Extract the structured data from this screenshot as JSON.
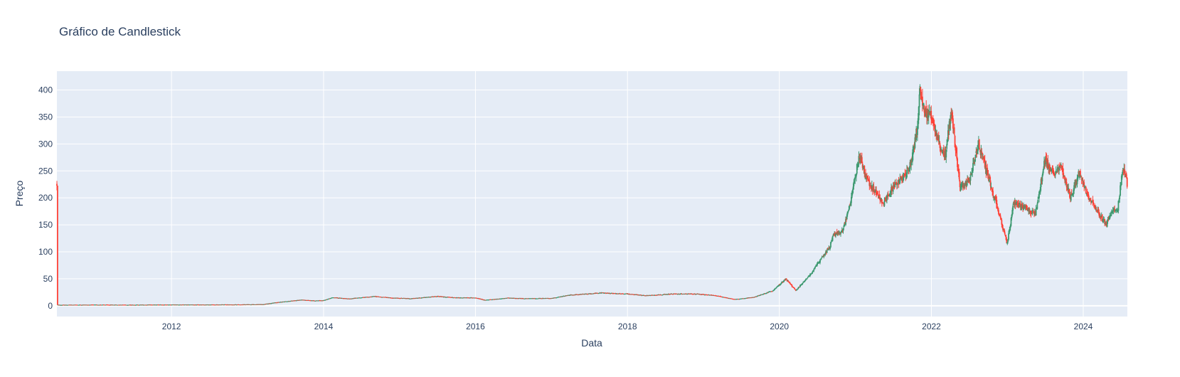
{
  "chart_data": {
    "type": "candlestick",
    "title": "Gráfico de Candlestick",
    "xlabel": "Data",
    "ylabel": "Preço",
    "x_range": [
      "2010-06-29",
      "2024-07-31"
    ],
    "ylim": [
      -20,
      435
    ],
    "x_ticks": [
      "2012",
      "2014",
      "2016",
      "2018",
      "2020",
      "2022",
      "2024"
    ],
    "y_ticks": [
      0,
      50,
      100,
      150,
      200,
      250,
      300,
      350,
      400
    ],
    "colors": {
      "increasing": "#3d9970",
      "decreasing": "#ff4136",
      "plot_background": "#e5ecf6",
      "grid": "#ffffff",
      "text": "#2a3f5f"
    },
    "grid": true,
    "price_path": [
      [
        "2010-07-01",
        1.5
      ],
      [
        "2011-01-01",
        1.8
      ],
      [
        "2011-07-01",
        1.7
      ],
      [
        "2012-01-01",
        2.0
      ],
      [
        "2012-07-01",
        2.0
      ],
      [
        "2013-01-01",
        2.3
      ],
      [
        "2013-03-15",
        2.6
      ],
      [
        "2013-05-15",
        6.0
      ],
      [
        "2013-07-01",
        8.0
      ],
      [
        "2013-09-15",
        11.0
      ],
      [
        "2013-11-15",
        9.5
      ],
      [
        "2014-01-01",
        10.0
      ],
      [
        "2014-02-15",
        15.5
      ],
      [
        "2014-05-01",
        13.0
      ],
      [
        "2014-09-01",
        17.5
      ],
      [
        "2014-12-01",
        14.5
      ],
      [
        "2015-03-01",
        13.5
      ],
      [
        "2015-07-01",
        17.5
      ],
      [
        "2015-10-01",
        15.0
      ],
      [
        "2016-01-01",
        15.0
      ],
      [
        "2016-02-15",
        10.5
      ],
      [
        "2016-06-01",
        14.5
      ],
      [
        "2016-09-01",
        13.5
      ],
      [
        "2017-01-01",
        14.0
      ],
      [
        "2017-04-01",
        20.0
      ],
      [
        "2017-09-01",
        24.0
      ],
      [
        "2018-01-01",
        22.0
      ],
      [
        "2018-04-01",
        19.0
      ],
      [
        "2018-08-01",
        22.0
      ],
      [
        "2018-12-01",
        22.0
      ],
      [
        "2019-03-01",
        19.0
      ],
      [
        "2019-06-01",
        12.0
      ],
      [
        "2019-09-01",
        16.0
      ],
      [
        "2019-12-01",
        28.0
      ],
      [
        "2020-02-01",
        50.0
      ],
      [
        "2020-03-20",
        28.0
      ],
      [
        "2020-06-01",
        60.0
      ],
      [
        "2020-08-31",
        110.0
      ],
      [
        "2020-09-15",
        130.0
      ],
      [
        "2020-11-01",
        140.0
      ],
      [
        "2020-12-01",
        180.0
      ],
      [
        "2021-01-20",
        280.0
      ],
      [
        "2021-03-01",
        230.0
      ],
      [
        "2021-05-15",
        190.0
      ],
      [
        "2021-07-01",
        220.0
      ],
      [
        "2021-09-15",
        250.0
      ],
      [
        "2021-10-25",
        330.0
      ],
      [
        "2021-11-05",
        400.0
      ],
      [
        "2021-12-01",
        360.0
      ],
      [
        "2022-01-01",
        350.0
      ],
      [
        "2022-02-15",
        290.0
      ],
      [
        "2022-03-10",
        280.0
      ],
      [
        "2022-04-05",
        360.0
      ],
      [
        "2022-05-20",
        220.0
      ],
      [
        "2022-07-01",
        230.0
      ],
      [
        "2022-08-15",
        300.0
      ],
      [
        "2022-10-01",
        240.0
      ],
      [
        "2022-11-15",
        180.0
      ],
      [
        "2022-12-31",
        115.0
      ],
      [
        "2023-02-01",
        190.0
      ],
      [
        "2023-04-01",
        180.0
      ],
      [
        "2023-05-15",
        170.0
      ],
      [
        "2023-07-01",
        270.0
      ],
      [
        "2023-08-15",
        240.0
      ],
      [
        "2023-09-15",
        260.0
      ],
      [
        "2023-11-01",
        200.0
      ],
      [
        "2023-12-15",
        250.0
      ],
      [
        "2024-01-15",
        210.0
      ],
      [
        "2024-02-15",
        190.0
      ],
      [
        "2024-04-20",
        150.0
      ],
      [
        "2024-05-15",
        175.0
      ],
      [
        "2024-06-15",
        180.0
      ],
      [
        "2024-07-10",
        260.0
      ],
      [
        "2024-07-31",
        225.0
      ]
    ]
  }
}
